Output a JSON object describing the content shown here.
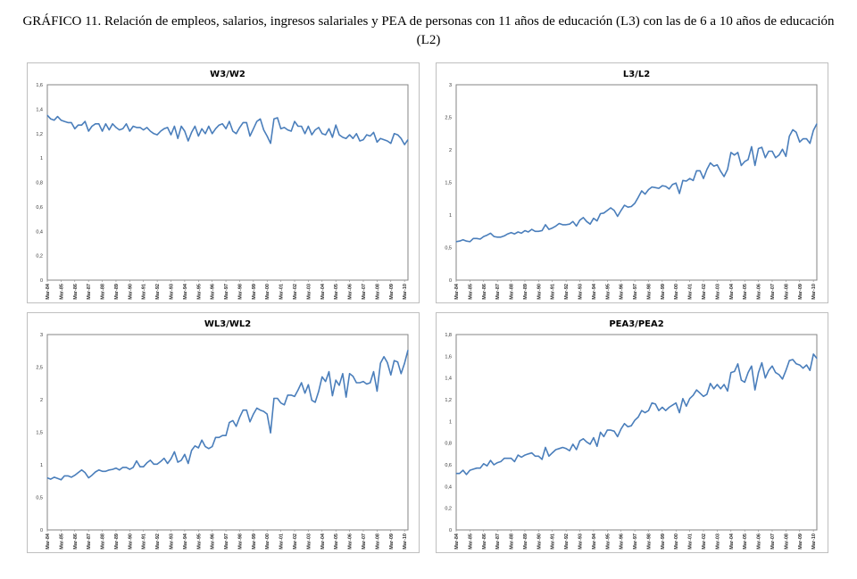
{
  "figure_title": "GRÁFICO 11. Relación de empleos, salarios, ingresos salariales y PEA de personas con 11 años de educación (L3) con las de 6 a 10 años de educación (L2)",
  "line_color": "#4a7ebb",
  "chart_data": [
    {
      "type": "line",
      "title": "W3/W2",
      "xlabel": "",
      "ylabel": "",
      "ylim": [
        0,
        1.6
      ],
      "yticks": [
        "0",
        "0,2",
        "0,4",
        "0,6",
        "0,8",
        "1",
        "1,2",
        "1,4",
        "1,6"
      ],
      "ytick_values": [
        0,
        0.2,
        0.4,
        0.6,
        0.8,
        1,
        1.2,
        1.4,
        1.6
      ],
      "xtick_labels": [
        "Mar-84",
        "Mar-85",
        "Mar-86",
        "Mar-87",
        "Mar-88",
        "Mar-89",
        "Mar-90",
        "Mar-91",
        "Mar-92",
        "Mar-93",
        "Mar-94",
        "Mar-95",
        "Mar-96",
        "Mar-97",
        "Mar-98",
        "Mar-99",
        "Mar-00",
        "Mar-01",
        "Mar-02",
        "Mar-03",
        "Mar-04",
        "Mar-05",
        "Mar-06",
        "Mar-07",
        "Mar-08",
        "Mar-09",
        "Mar-10"
      ],
      "frequency": "quarterly",
      "values": [
        1.35,
        1.32,
        1.31,
        1.34,
        1.31,
        1.3,
        1.29,
        1.29,
        1.24,
        1.27,
        1.27,
        1.3,
        1.22,
        1.26,
        1.28,
        1.28,
        1.22,
        1.28,
        1.23,
        1.28,
        1.25,
        1.23,
        1.24,
        1.28,
        1.22,
        1.26,
        1.25,
        1.25,
        1.23,
        1.25,
        1.22,
        1.2,
        1.19,
        1.22,
        1.24,
        1.25,
        1.19,
        1.26,
        1.16,
        1.26,
        1.22,
        1.14,
        1.21,
        1.26,
        1.18,
        1.24,
        1.2,
        1.26,
        1.2,
        1.24,
        1.27,
        1.28,
        1.24,
        1.3,
        1.22,
        1.2,
        1.25,
        1.29,
        1.29,
        1.18,
        1.24,
        1.3,
        1.32,
        1.23,
        1.18,
        1.12,
        1.32,
        1.33,
        1.24,
        1.25,
        1.23,
        1.22,
        1.3,
        1.26,
        1.26,
        1.2,
        1.26,
        1.19,
        1.23,
        1.25,
        1.2,
        1.19,
        1.24,
        1.17,
        1.27,
        1.19,
        1.17,
        1.16,
        1.19,
        1.16,
        1.2,
        1.14,
        1.15,
        1.19,
        1.18,
        1.21,
        1.13,
        1.16,
        1.15,
        1.14,
        1.12,
        1.2,
        1.19,
        1.16,
        1.11,
        1.15
      ]
    },
    {
      "type": "line",
      "title": "L3/L2",
      "xlabel": "",
      "ylabel": "",
      "ylim": [
        0,
        3
      ],
      "yticks": [
        "0",
        "0,5",
        "1",
        "1,5",
        "2",
        "2,5",
        "3"
      ],
      "ytick_values": [
        0,
        0.5,
        1,
        1.5,
        2,
        2.5,
        3
      ],
      "xtick_labels": [
        "Mar-84",
        "Mar-85",
        "Mar-86",
        "Mar-87",
        "Mar-88",
        "Mar-89",
        "Mar-90",
        "Mar-91",
        "Mar-92",
        "Mar-93",
        "Mar-94",
        "Mar-95",
        "Mar-96",
        "Mar-97",
        "Mar-98",
        "Mar-99",
        "Mar-00",
        "Mar-01",
        "Mar-02",
        "Mar-03",
        "Mar-04",
        "Mar-05",
        "Mar-06",
        "Mar-07",
        "Mar-08",
        "Mar-09",
        "Mar-10"
      ],
      "frequency": "quarterly",
      "values": [
        0.59,
        0.6,
        0.62,
        0.6,
        0.59,
        0.64,
        0.64,
        0.63,
        0.67,
        0.69,
        0.72,
        0.67,
        0.66,
        0.66,
        0.68,
        0.71,
        0.73,
        0.71,
        0.74,
        0.72,
        0.76,
        0.74,
        0.78,
        0.75,
        0.75,
        0.76,
        0.85,
        0.78,
        0.8,
        0.83,
        0.87,
        0.85,
        0.85,
        0.86,
        0.9,
        0.83,
        0.92,
        0.96,
        0.9,
        0.86,
        0.95,
        0.91,
        1.02,
        1.03,
        1.07,
        1.11,
        1.07,
        0.98,
        1.07,
        1.15,
        1.12,
        1.13,
        1.18,
        1.27,
        1.37,
        1.32,
        1.39,
        1.43,
        1.42,
        1.41,
        1.45,
        1.44,
        1.4,
        1.47,
        1.49,
        1.33,
        1.53,
        1.52,
        1.56,
        1.53,
        1.68,
        1.68,
        1.56,
        1.7,
        1.8,
        1.75,
        1.77,
        1.67,
        1.59,
        1.7,
        1.96,
        1.92,
        1.96,
        1.76,
        1.82,
        1.85,
        2.05,
        1.76,
        2.02,
        2.04,
        1.88,
        1.98,
        1.98,
        1.88,
        1.92,
        2.01,
        1.9,
        2.21,
        2.31,
        2.27,
        2.12,
        2.17,
        2.17,
        2.1,
        2.3,
        2.4
      ]
    },
    {
      "type": "line",
      "title": "WL3/WL2",
      "xlabel": "",
      "ylabel": "",
      "ylim": [
        0,
        3
      ],
      "yticks": [
        "0",
        "0,5",
        "1",
        "1,5",
        "2",
        "2,5",
        "3"
      ],
      "ytick_values": [
        0,
        0.5,
        1,
        1.5,
        2,
        2.5,
        3
      ],
      "xtick_labels": [
        "Mar-84",
        "Mar-85",
        "Mar-86",
        "Mar-87",
        "Mar-88",
        "Mar-89",
        "Mar-90",
        "Mar-91",
        "Mar-92",
        "Mar-93",
        "Mar-94",
        "Mar-95",
        "Mar-96",
        "Mar-97",
        "Mar-98",
        "Mar-99",
        "Mar-00",
        "Mar-01",
        "Mar-02",
        "Mar-03",
        "Mar-04",
        "Mar-05",
        "Mar-06",
        "Mar-07",
        "Mar-08",
        "Mar-09",
        "Mar-10"
      ],
      "frequency": "quarterly",
      "values": [
        0.8,
        0.78,
        0.81,
        0.79,
        0.77,
        0.83,
        0.83,
        0.81,
        0.84,
        0.88,
        0.92,
        0.88,
        0.8,
        0.84,
        0.89,
        0.92,
        0.9,
        0.9,
        0.92,
        0.93,
        0.95,
        0.92,
        0.96,
        0.96,
        0.93,
        0.96,
        1.06,
        0.97,
        0.97,
        1.03,
        1.07,
        1.01,
        1.01,
        1.05,
        1.1,
        1.02,
        1.09,
        1.2,
        1.04,
        1.07,
        1.16,
        1.02,
        1.22,
        1.29,
        1.26,
        1.38,
        1.28,
        1.25,
        1.28,
        1.42,
        1.42,
        1.45,
        1.45,
        1.65,
        1.68,
        1.59,
        1.73,
        1.84,
        1.84,
        1.66,
        1.78,
        1.87,
        1.84,
        1.82,
        1.78,
        1.49,
        2.02,
        2.02,
        1.95,
        1.92,
        2.07,
        2.07,
        2.05,
        2.15,
        2.26,
        2.1,
        2.23,
        1.99,
        1.96,
        2.13,
        2.35,
        2.28,
        2.43,
        2.06,
        2.3,
        2.22,
        2.4,
        2.04,
        2.4,
        2.36,
        2.26,
        2.26,
        2.28,
        2.24,
        2.26,
        2.43,
        2.13,
        2.56,
        2.66,
        2.57,
        2.38,
        2.6,
        2.58,
        2.4,
        2.56,
        2.76
      ]
    },
    {
      "type": "line",
      "title": "PEA3/PEA2",
      "xlabel": "",
      "ylabel": "",
      "ylim": [
        0,
        1.8
      ],
      "yticks": [
        "0",
        "0,2",
        "0,4",
        "0,6",
        "0,8",
        "1",
        "1,2",
        "1,4",
        "1,6",
        "1,8"
      ],
      "ytick_values": [
        0,
        0.2,
        0.4,
        0.6,
        0.8,
        1,
        1.2,
        1.4,
        1.6,
        1.8
      ],
      "xtick_labels": [
        "Mar-84",
        "Mar-85",
        "Mar-86",
        "Mar-87",
        "Mar-88",
        "Mar-89",
        "Mar-90",
        "Mar-91",
        "Mar-92",
        "Mar-93",
        "Mar-94",
        "Mar-95",
        "Mar-96",
        "Mar-97",
        "Mar-98",
        "Mar-99",
        "Mar-00",
        "Mar-01",
        "Mar-02",
        "Mar-03",
        "Mar-04",
        "Mar-05",
        "Mar-06",
        "Mar-07",
        "Mar-08",
        "Mar-09",
        "Mar-10"
      ],
      "frequency": "quarterly",
      "values": [
        0.52,
        0.52,
        0.55,
        0.51,
        0.55,
        0.56,
        0.57,
        0.57,
        0.61,
        0.59,
        0.64,
        0.6,
        0.62,
        0.63,
        0.66,
        0.66,
        0.66,
        0.63,
        0.69,
        0.67,
        0.69,
        0.7,
        0.71,
        0.68,
        0.68,
        0.65,
        0.76,
        0.68,
        0.71,
        0.74,
        0.75,
        0.76,
        0.75,
        0.73,
        0.79,
        0.74,
        0.82,
        0.84,
        0.81,
        0.79,
        0.85,
        0.77,
        0.9,
        0.86,
        0.92,
        0.92,
        0.91,
        0.86,
        0.93,
        0.98,
        0.95,
        0.96,
        1.01,
        1.04,
        1.1,
        1.08,
        1.1,
        1.17,
        1.16,
        1.1,
        1.13,
        1.1,
        1.13,
        1.15,
        1.17,
        1.08,
        1.21,
        1.14,
        1.21,
        1.24,
        1.29,
        1.26,
        1.23,
        1.25,
        1.35,
        1.3,
        1.34,
        1.3,
        1.34,
        1.28,
        1.45,
        1.46,
        1.53,
        1.38,
        1.36,
        1.45,
        1.51,
        1.29,
        1.45,
        1.54,
        1.4,
        1.47,
        1.51,
        1.45,
        1.43,
        1.39,
        1.47,
        1.56,
        1.57,
        1.53,
        1.52,
        1.49,
        1.52,
        1.47,
        1.62,
        1.58
      ]
    }
  ]
}
